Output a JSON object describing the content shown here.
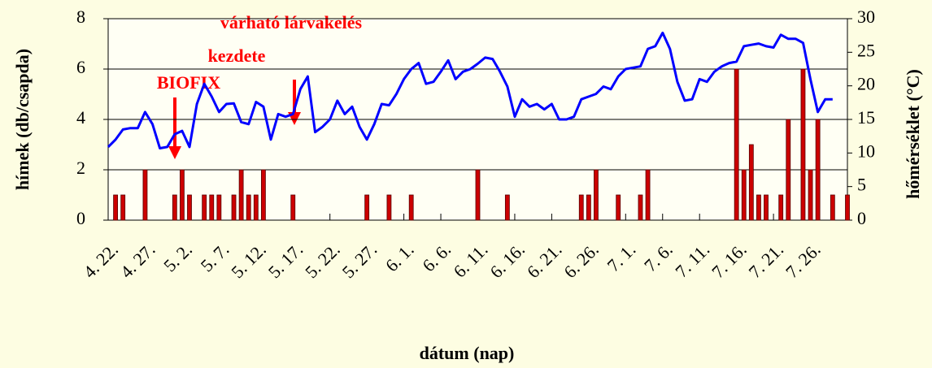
{
  "chart_data": {
    "type": "bar",
    "ylabel": "hímek (db/csapda)",
    "y2label": "hőmérséklet (°C)",
    "xlabel": "dátum (nap)",
    "annotations": [
      "várható lárvakelés",
      "kezdete",
      "BIOFIX"
    ],
    "categories": [
      "4. 22.",
      null,
      null,
      null,
      null,
      "4. 27.",
      null,
      null,
      null,
      null,
      "5. 2.",
      null,
      null,
      null,
      null,
      "5. 7.",
      null,
      null,
      null,
      null,
      "5. 12.",
      null,
      null,
      null,
      null,
      "5. 17.",
      null,
      null,
      null,
      null,
      "5. 22.",
      null,
      null,
      null,
      null,
      "5. 27.",
      null,
      null,
      null,
      null,
      "6. 1.",
      null,
      null,
      null,
      null,
      "6. 6.",
      null,
      null,
      null,
      null,
      "6. 11.",
      null,
      null,
      null,
      null,
      "6. 16.",
      null,
      null,
      null,
      null,
      "6. 21.",
      null,
      null,
      null,
      null,
      "6. 26.",
      null,
      null,
      null,
      null,
      "7. 1.",
      null,
      null,
      null,
      null,
      "7. 6.",
      null,
      null,
      null,
      null,
      "7. 11.",
      null,
      null,
      null,
      null,
      "7. 16.",
      null,
      null,
      null,
      null,
      "7. 21.",
      null,
      null,
      null,
      null,
      "7. 26.",
      null,
      null,
      null,
      null,
      null
    ],
    "series": [
      {
        "type": "bar",
        "color": "#cc0000",
        "values": [
          null,
          1,
          1,
          null,
          null,
          2,
          null,
          null,
          null,
          1,
          2,
          1,
          null,
          1,
          1,
          1,
          null,
          1,
          2,
          1,
          1,
          2,
          null,
          null,
          null,
          1,
          null,
          null,
          null,
          null,
          null,
          null,
          null,
          null,
          null,
          1,
          null,
          null,
          1,
          null,
          null,
          1,
          null,
          null,
          null,
          null,
          null,
          null,
          null,
          null,
          2,
          null,
          null,
          null,
          1,
          null,
          null,
          null,
          null,
          null,
          null,
          null,
          null,
          null,
          1,
          1,
          2,
          null,
          null,
          1,
          null,
          null,
          1,
          2,
          null,
          null,
          null,
          null,
          null,
          null,
          null,
          null,
          null,
          null,
          null,
          6,
          2,
          3,
          1,
          1,
          null,
          1,
          4,
          null,
          6,
          2,
          4,
          null,
          1,
          null,
          1
        ]
      },
      {
        "type": "line",
        "axis": "y2",
        "color": "#0000ff",
        "values": [
          10.9,
          12,
          13.5,
          13.7,
          13.7,
          16.1,
          14.3,
          10.7,
          10.9,
          12.8,
          13.3,
          10.9,
          17.3,
          20.3,
          18.4,
          16.1,
          17.3,
          17.4,
          14.6,
          14.3,
          17.6,
          16.9,
          12,
          15.8,
          15.4,
          15.8,
          19.5,
          21.4,
          13.1,
          13.9,
          15,
          17.8,
          15.8,
          16.9,
          13.9,
          12,
          14.3,
          17.3,
          17.1,
          18.8,
          21,
          22.5,
          23.4,
          20.3,
          20.6,
          22.1,
          23.8,
          21,
          22.1,
          22.5,
          23.3,
          24.2,
          24,
          22.1,
          19.9,
          15.4,
          18,
          16.9,
          17.3,
          16.5,
          17.3,
          15,
          15,
          15.4,
          18,
          18.4,
          18.8,
          19.9,
          19.5,
          21.4,
          22.5,
          22.7,
          22.9,
          25.5,
          25.9,
          27.9,
          25.5,
          20.6,
          17.8,
          18,
          21,
          20.6,
          22.1,
          22.9,
          23.4,
          23.6,
          25.9,
          26.1,
          26.3,
          25.9,
          25.7,
          27.6,
          27,
          27,
          26.4,
          21,
          16.1,
          18,
          18,
          null,
          null
        ]
      }
    ],
    "ylim": [
      0,
      8
    ],
    "yticks": [
      0,
      2,
      4,
      6,
      8
    ],
    "y2lim": [
      0,
      30
    ],
    "y2ticks": [
      0,
      5,
      10,
      15,
      20,
      25,
      30
    ],
    "grid": true
  }
}
